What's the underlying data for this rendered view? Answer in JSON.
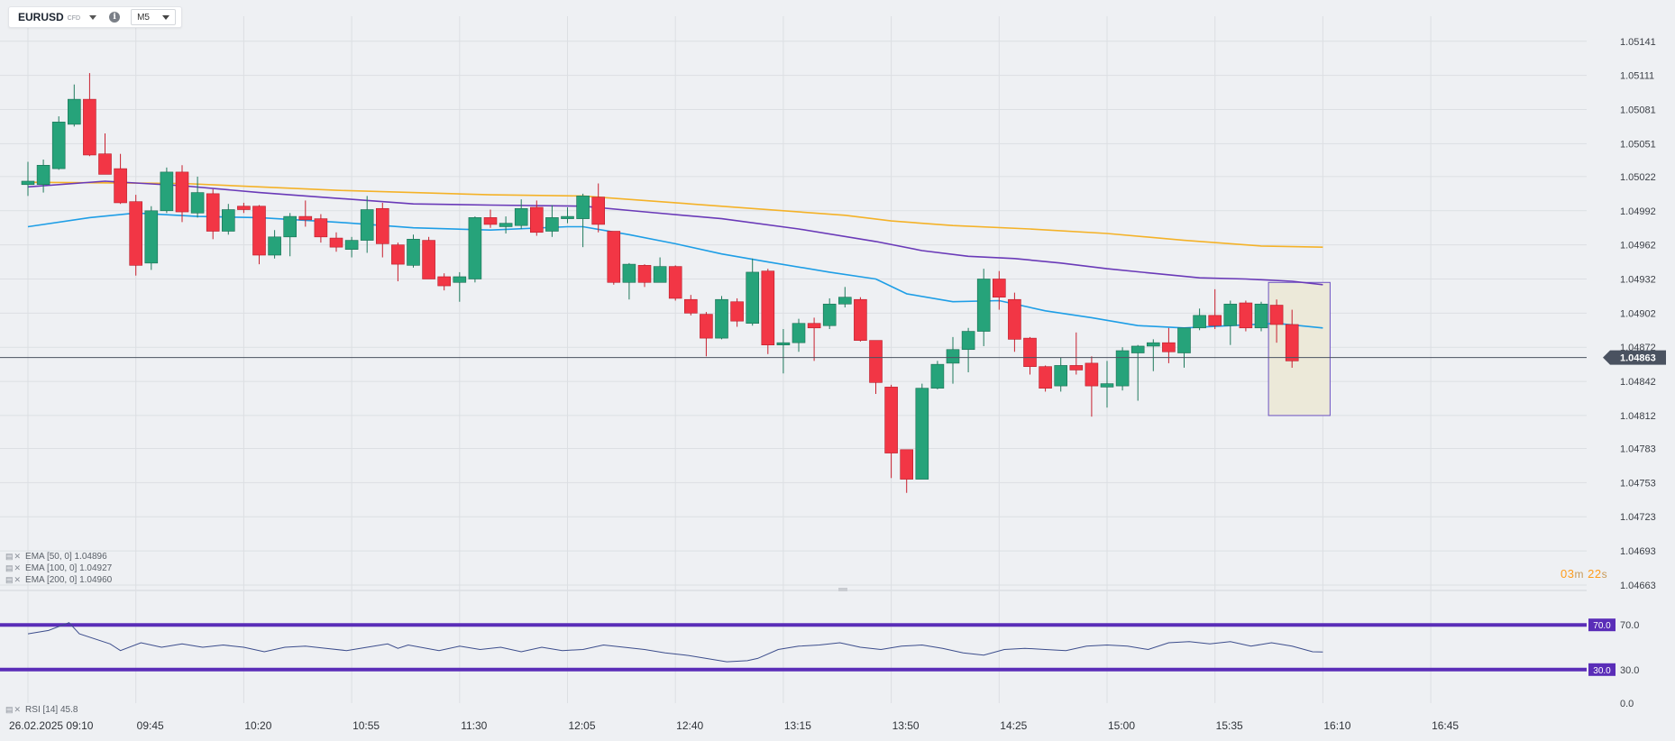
{
  "toolbar": {
    "symbol": "EURUSD",
    "instrument_type": "CFD",
    "symbol_dropdown_icon": "chevron-down-icon",
    "info_icon": "info-icon",
    "info_glyph": "i",
    "timeframe": "M5",
    "timeframe_dropdown_icon": "chevron-down-icon"
  },
  "legend": {
    "ema50": "EMA [50, 0] 1.04896",
    "ema100": "EMA [100, 0] 1.04927",
    "ema200": "EMA [200, 0] 1.04960",
    "rsi": "RSI [14] 45.8",
    "settings_icon": "settings-icon",
    "remove_icon": "close-icon"
  },
  "timer": {
    "min": "03",
    "min_unit": "m",
    "sec": "22",
    "sec_unit": "s"
  },
  "colors": {
    "bull": "#26a37a",
    "bear": "#f23645",
    "ema50": "#1e9ee6",
    "ema100": "#6a3ab8",
    "ema200": "#f4b228",
    "rsi_line": "#3c4d8c",
    "rsi_level": "#5a2db8",
    "price_marker": "#4a5260",
    "timer": "#ff9c1a",
    "highlight_fill": "#ece9d9",
    "highlight_border": "#6c52c2"
  },
  "chart_data": {
    "type": "candlestick",
    "symbol": "EURUSD",
    "timeframe": "M5",
    "date_label": "26.02.2025",
    "x_tick_labels": [
      "09:10",
      "09:45",
      "10:20",
      "10:55",
      "11:30",
      "12:05",
      "12:40",
      "13:15",
      "13:50",
      "14:25",
      "15:00",
      "15:35",
      "16:10",
      "16:45"
    ],
    "y_tick_labels": [
      "1.05141",
      "1.05111",
      "1.05081",
      "1.05051",
      "1.05022",
      "1.04992",
      "1.04962",
      "1.04932",
      "1.04902",
      "1.04872",
      "1.04842",
      "1.04812",
      "1.04783",
      "1.04753",
      "1.04723",
      "1.04693",
      "1.04663"
    ],
    "ylim": [
      1.04659,
      1.05163
    ],
    "current_price": 1.04863,
    "current_price_label": "1.04863",
    "candles": [
      {
        "t": "09:10",
        "o": 1.05015,
        "h": 1.05035,
        "l": 1.05005,
        "c": 1.05018
      },
      {
        "t": "09:15",
        "o": 1.05015,
        "h": 1.05037,
        "l": 1.05008,
        "c": 1.05032
      },
      {
        "t": "09:20",
        "o": 1.05029,
        "h": 1.05075,
        "l": 1.05028,
        "c": 1.0507
      },
      {
        "t": "09:25",
        "o": 1.05068,
        "h": 1.05103,
        "l": 1.05066,
        "c": 1.0509
      },
      {
        "t": "09:30",
        "o": 1.0509,
        "h": 1.05113,
        "l": 1.0504,
        "c": 1.05041
      },
      {
        "t": "09:35",
        "o": 1.05042,
        "h": 1.0506,
        "l": 1.05025,
        "c": 1.05024
      },
      {
        "t": "09:40",
        "o": 1.05029,
        "h": 1.05042,
        "l": 1.04998,
        "c": 1.04999
      },
      {
        "t": "09:45",
        "o": 1.05,
        "h": 1.05006,
        "l": 1.04935,
        "c": 1.04944
      },
      {
        "t": "09:50",
        "o": 1.04946,
        "h": 1.04996,
        "l": 1.0494,
        "c": 1.04992
      },
      {
        "t": "09:55",
        "o": 1.04992,
        "h": 1.0503,
        "l": 1.0499,
        "c": 1.05026
      },
      {
        "t": "10:00",
        "o": 1.05026,
        "h": 1.05032,
        "l": 1.04982,
        "c": 1.04991
      },
      {
        "t": "10:05",
        "o": 1.0499,
        "h": 1.05022,
        "l": 1.04986,
        "c": 1.05008
      },
      {
        "t": "10:10",
        "o": 1.05007,
        "h": 1.05011,
        "l": 1.04967,
        "c": 1.04974
      },
      {
        "t": "10:15",
        "o": 1.04974,
        "h": 1.04998,
        "l": 1.04971,
        "c": 1.04993
      },
      {
        "t": "10:20",
        "o": 1.04996,
        "h": 1.04999,
        "l": 1.0499,
        "c": 1.04993
      },
      {
        "t": "10:25",
        "o": 1.04996,
        "h": 1.04997,
        "l": 1.04945,
        "c": 1.04953
      },
      {
        "t": "10:30",
        "o": 1.04953,
        "h": 1.04975,
        "l": 1.0495,
        "c": 1.04969
      },
      {
        "t": "10:35",
        "o": 1.04969,
        "h": 1.0499,
        "l": 1.04952,
        "c": 1.04987
      },
      {
        "t": "10:40",
        "o": 1.04987,
        "h": 1.05001,
        "l": 1.04978,
        "c": 1.04984
      },
      {
        "t": "10:45",
        "o": 1.04985,
        "h": 1.04989,
        "l": 1.04964,
        "c": 1.04969
      },
      {
        "t": "10:50",
        "o": 1.04968,
        "h": 1.04973,
        "l": 1.04956,
        "c": 1.0496
      },
      {
        "t": "10:55",
        "o": 1.04958,
        "h": 1.04969,
        "l": 1.04951,
        "c": 1.04966
      },
      {
        "t": "11:00",
        "o": 1.04966,
        "h": 1.05005,
        "l": 1.04955,
        "c": 1.04993
      },
      {
        "t": "11:05",
        "o": 1.04994,
        "h": 1.04999,
        "l": 1.04951,
        "c": 1.04963
      },
      {
        "t": "11:10",
        "o": 1.04962,
        "h": 1.04964,
        "l": 1.0493,
        "c": 1.04945
      },
      {
        "t": "11:15",
        "o": 1.04944,
        "h": 1.04971,
        "l": 1.04942,
        "c": 1.04967
      },
      {
        "t": "11:20",
        "o": 1.04966,
        "h": 1.04969,
        "l": 1.04935,
        "c": 1.04932
      },
      {
        "t": "11:25",
        "o": 1.04934,
        "h": 1.04937,
        "l": 1.04922,
        "c": 1.04926
      },
      {
        "t": "11:30",
        "o": 1.04929,
        "h": 1.04938,
        "l": 1.04912,
        "c": 1.04934
      },
      {
        "t": "11:35",
        "o": 1.04932,
        "h": 1.04987,
        "l": 1.04929,
        "c": 1.04986
      },
      {
        "t": "11:40",
        "o": 1.04986,
        "h": 1.04993,
        "l": 1.04977,
        "c": 1.0498
      },
      {
        "t": "11:45",
        "o": 1.04978,
        "h": 1.04987,
        "l": 1.04972,
        "c": 1.04981
      },
      {
        "t": "11:50",
        "o": 1.04979,
        "h": 1.05002,
        "l": 1.04976,
        "c": 1.04994
      },
      {
        "t": "11:55",
        "o": 1.04995,
        "h": 1.05001,
        "l": 1.0497,
        "c": 1.04973
      },
      {
        "t": "12:00",
        "o": 1.04974,
        "h": 1.04997,
        "l": 1.04969,
        "c": 1.04986
      },
      {
        "t": "12:05",
        "o": 1.04985,
        "h": 1.04995,
        "l": 1.04981,
        "c": 1.04987
      },
      {
        "t": "12:10",
        "o": 1.04985,
        "h": 1.05007,
        "l": 1.0496,
        "c": 1.05005
      },
      {
        "t": "12:15",
        "o": 1.05004,
        "h": 1.05016,
        "l": 1.04973,
        "c": 1.0498
      },
      {
        "t": "12:20",
        "o": 1.04974,
        "h": 1.04974,
        "l": 1.04927,
        "c": 1.04929
      },
      {
        "t": "12:25",
        "o": 1.04929,
        "h": 1.04946,
        "l": 1.04914,
        "c": 1.04945
      },
      {
        "t": "12:30",
        "o": 1.04944,
        "h": 1.04945,
        "l": 1.04925,
        "c": 1.04929
      },
      {
        "t": "12:35",
        "o": 1.04929,
        "h": 1.04951,
        "l": 1.04929,
        "c": 1.04943
      },
      {
        "t": "12:40",
        "o": 1.04943,
        "h": 1.04944,
        "l": 1.04913,
        "c": 1.04915
      },
      {
        "t": "12:45",
        "o": 1.04914,
        "h": 1.04918,
        "l": 1.049,
        "c": 1.04902
      },
      {
        "t": "12:50",
        "o": 1.04901,
        "h": 1.04903,
        "l": 1.04864,
        "c": 1.0488
      },
      {
        "t": "12:55",
        "o": 1.0488,
        "h": 1.04917,
        "l": 1.04879,
        "c": 1.04914
      },
      {
        "t": "13:00",
        "o": 1.04912,
        "h": 1.04915,
        "l": 1.0489,
        "c": 1.04895
      },
      {
        "t": "13:05",
        "o": 1.04893,
        "h": 1.0495,
        "l": 1.04891,
        "c": 1.04938
      },
      {
        "t": "13:10",
        "o": 1.04939,
        "h": 1.04941,
        "l": 1.04866,
        "c": 1.04874
      },
      {
        "t": "13:15",
        "o": 1.04874,
        "h": 1.04888,
        "l": 1.04849,
        "c": 1.04876
      },
      {
        "t": "13:20",
        "o": 1.04876,
        "h": 1.04897,
        "l": 1.04868,
        "c": 1.04893
      },
      {
        "t": "13:25",
        "o": 1.04893,
        "h": 1.04898,
        "l": 1.0486,
        "c": 1.04889
      },
      {
        "t": "13:30",
        "o": 1.04891,
        "h": 1.04915,
        "l": 1.04888,
        "c": 1.0491
      },
      {
        "t": "13:35",
        "o": 1.0491,
        "h": 1.04925,
        "l": 1.04907,
        "c": 1.04916
      },
      {
        "t": "13:40",
        "o": 1.04914,
        "h": 1.04916,
        "l": 1.04877,
        "c": 1.04878
      },
      {
        "t": "13:45",
        "o": 1.04878,
        "h": 1.04877,
        "l": 1.04831,
        "c": 1.04841
      },
      {
        "t": "13:50",
        "o": 1.04837,
        "h": 1.04839,
        "l": 1.04757,
        "c": 1.04779
      },
      {
        "t": "13:55",
        "o": 1.04782,
        "h": 1.0478,
        "l": 1.04744,
        "c": 1.04756
      },
      {
        "t": "14:00",
        "o": 1.04756,
        "h": 1.0484,
        "l": 1.04758,
        "c": 1.04836
      },
      {
        "t": "14:05",
        "o": 1.04836,
        "h": 1.0486,
        "l": 1.04835,
        "c": 1.04857
      },
      {
        "t": "14:10",
        "o": 1.04858,
        "h": 1.04881,
        "l": 1.0484,
        "c": 1.0487
      },
      {
        "t": "14:15",
        "o": 1.0487,
        "h": 1.04889,
        "l": 1.0485,
        "c": 1.04886
      },
      {
        "t": "14:20",
        "o": 1.04886,
        "h": 1.04941,
        "l": 1.04873,
        "c": 1.04932
      },
      {
        "t": "14:25",
        "o": 1.04932,
        "h": 1.04939,
        "l": 1.04905,
        "c": 1.04916
      },
      {
        "t": "14:30",
        "o": 1.04914,
        "h": 1.0492,
        "l": 1.04868,
        "c": 1.04879
      },
      {
        "t": "14:35",
        "o": 1.0488,
        "h": 1.04881,
        "l": 1.04848,
        "c": 1.04855
      },
      {
        "t": "14:40",
        "o": 1.04855,
        "h": 1.04856,
        "l": 1.04833,
        "c": 1.04836
      },
      {
        "t": "14:45",
        "o": 1.04838,
        "h": 1.04863,
        "l": 1.04833,
        "c": 1.04856
      },
      {
        "t": "14:50",
        "o": 1.04856,
        "h": 1.04885,
        "l": 1.04848,
        "c": 1.04852
      },
      {
        "t": "14:55",
        "o": 1.04858,
        "h": 1.04864,
        "l": 1.04811,
        "c": 1.04838
      },
      {
        "t": "15:00",
        "o": 1.04837,
        "h": 1.0486,
        "l": 1.04819,
        "c": 1.0484
      },
      {
        "t": "15:05",
        "o": 1.04838,
        "h": 1.04872,
        "l": 1.04834,
        "c": 1.04869
      },
      {
        "t": "15:10",
        "o": 1.04867,
        "h": 1.04874,
        "l": 1.04825,
        "c": 1.04873
      },
      {
        "t": "15:15",
        "o": 1.04873,
        "h": 1.04879,
        "l": 1.04851,
        "c": 1.04876
      },
      {
        "t": "15:20",
        "o": 1.04876,
        "h": 1.04889,
        "l": 1.04858,
        "c": 1.04868
      },
      {
        "t": "15:25",
        "o": 1.04867,
        "h": 1.04887,
        "l": 1.04854,
        "c": 1.04889
      },
      {
        "t": "15:30",
        "o": 1.04889,
        "h": 1.04906,
        "l": 1.04887,
        "c": 1.049
      },
      {
        "t": "15:35",
        "o": 1.049,
        "h": 1.04923,
        "l": 1.04888,
        "c": 1.04891
      },
      {
        "t": "15:40",
        "o": 1.04891,
        "h": 1.04913,
        "l": 1.04874,
        "c": 1.0491
      },
      {
        "t": "15:45",
        "o": 1.04911,
        "h": 1.04913,
        "l": 1.04886,
        "c": 1.04889
      },
      {
        "t": "15:50",
        "o": 1.04889,
        "h": 1.04912,
        "l": 1.04886,
        "c": 1.0491
      },
      {
        "t": "15:55",
        "o": 1.04909,
        "h": 1.04914,
        "l": 1.04876,
        "c": 1.04892
      },
      {
        "t": "16:00",
        "o": 1.04892,
        "h": 1.04905,
        "l": 1.04854,
        "c": 1.0486
      }
    ],
    "ema50": [
      [
        0,
        1.04978
      ],
      [
        4,
        1.04986
      ],
      [
        7,
        1.0499
      ],
      [
        11,
        1.04987
      ],
      [
        15,
        1.04986
      ],
      [
        20,
        1.04982
      ],
      [
        25,
        1.04977
      ],
      [
        30,
        1.04975
      ],
      [
        35,
        1.04978
      ],
      [
        36,
        1.04978
      ],
      [
        39,
        1.04971
      ],
      [
        42,
        1.04963
      ],
      [
        45,
        1.04954
      ],
      [
        48,
        1.04947
      ],
      [
        52,
        1.04938
      ],
      [
        55,
        1.04932
      ],
      [
        57,
        1.04919
      ],
      [
        60,
        1.04912
      ],
      [
        63,
        1.04913
      ],
      [
        66,
        1.04904
      ],
      [
        69,
        1.04898
      ],
      [
        72,
        1.04891
      ],
      [
        75,
        1.04889
      ],
      [
        78,
        1.04891
      ],
      [
        81,
        1.04893
      ],
      [
        84,
        1.04889
      ]
    ],
    "ema100": [
      [
        0,
        1.05013
      ],
      [
        5,
        1.05018
      ],
      [
        10,
        1.05014
      ],
      [
        15,
        1.05008
      ],
      [
        20,
        1.05003
      ],
      [
        25,
        1.04998
      ],
      [
        30,
        1.04997
      ],
      [
        36,
        1.04996
      ],
      [
        40,
        1.04991
      ],
      [
        45,
        1.04985
      ],
      [
        50,
        1.04976
      ],
      [
        55,
        1.04965
      ],
      [
        58,
        1.04957
      ],
      [
        61,
        1.04952
      ],
      [
        64,
        1.0495
      ],
      [
        67,
        1.04946
      ],
      [
        70,
        1.04941
      ],
      [
        73,
        1.04937
      ],
      [
        76,
        1.04933
      ],
      [
        79,
        1.04932
      ],
      [
        82,
        1.0493
      ],
      [
        84,
        1.04927
      ]
    ],
    "ema200": [
      [
        0,
        1.05017
      ],
      [
        10,
        1.05016
      ],
      [
        20,
        1.0501
      ],
      [
        30,
        1.05006
      ],
      [
        36,
        1.05005
      ],
      [
        41,
        1.05
      ],
      [
        47,
        1.04994
      ],
      [
        53,
        1.04988
      ],
      [
        56,
        1.04983
      ],
      [
        60,
        1.04979
      ],
      [
        65,
        1.04976
      ],
      [
        70,
        1.04972
      ],
      [
        75,
        1.04966
      ],
      [
        80,
        1.04961
      ],
      [
        84,
        1.0496
      ]
    ],
    "highlight_box": {
      "from": "15:55",
      "to": "16:10",
      "price_top": 1.04929,
      "price_bottom": 1.04812
    },
    "rsi": {
      "label": "RSI [14]",
      "value": 45.8,
      "ylim": [
        0,
        100
      ],
      "y_tick_labels": [
        "70.0",
        "30.0",
        "0.0"
      ],
      "levels": [
        70,
        30
      ],
      "level_labels": [
        "70.0",
        "30.0"
      ],
      "values": [
        [
          0,
          62
        ],
        [
          2,
          65
        ],
        [
          4,
          72
        ],
        [
          5,
          62
        ],
        [
          8,
          53
        ],
        [
          9,
          47
        ],
        [
          11,
          54
        ],
        [
          13,
          50
        ],
        [
          15,
          53
        ],
        [
          17,
          50
        ],
        [
          19,
          52
        ],
        [
          21,
          50
        ],
        [
          23,
          46
        ],
        [
          25,
          50
        ],
        [
          27,
          51
        ],
        [
          29,
          49
        ],
        [
          31,
          47
        ],
        [
          33,
          50
        ],
        [
          35,
          53
        ],
        [
          36,
          49
        ],
        [
          37,
          52
        ],
        [
          40,
          47
        ],
        [
          42,
          51
        ],
        [
          44,
          48
        ],
        [
          46,
          50
        ],
        [
          48,
          46
        ],
        [
          50,
          50
        ],
        [
          52,
          47
        ],
        [
          54,
          48
        ],
        [
          56,
          52
        ],
        [
          58,
          50
        ],
        [
          60,
          48
        ],
        [
          62,
          45
        ],
        [
          64,
          43
        ],
        [
          66,
          40
        ],
        [
          68,
          37
        ],
        [
          70,
          38
        ],
        [
          71,
          40
        ],
        [
          73,
          48
        ],
        [
          75,
          51
        ],
        [
          77,
          52
        ],
        [
          79,
          54
        ],
        [
          81,
          50
        ],
        [
          83,
          48
        ],
        [
          85,
          51
        ],
        [
          87,
          52
        ],
        [
          89,
          49
        ],
        [
          91,
          45
        ],
        [
          93,
          43
        ],
        [
          95,
          48
        ],
        [
          97,
          49
        ],
        [
          99,
          48
        ],
        [
          101,
          47
        ],
        [
          103,
          51
        ],
        [
          105,
          52
        ],
        [
          107,
          51
        ],
        [
          109,
          48
        ],
        [
          111,
          54
        ],
        [
          113,
          55
        ],
        [
          115,
          53
        ],
        [
          117,
          55
        ],
        [
          119,
          51
        ],
        [
          121,
          54
        ],
        [
          123,
          51
        ],
        [
          125,
          46
        ],
        [
          126,
          45.8
        ]
      ]
    }
  }
}
